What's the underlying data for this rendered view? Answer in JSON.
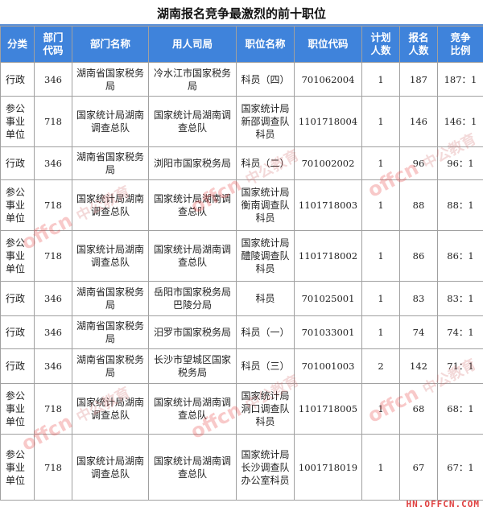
{
  "title": "湖南报名竞争最激烈的前十职位",
  "headers": [
    "分类",
    "部门代码",
    "部门名称",
    "用人司局",
    "职位名称",
    "职位代码",
    "计划人数",
    "报名人数",
    "竞争比例"
  ],
  "rows": [
    [
      "行政",
      "346",
      "湖南省国家税务局",
      "冷水江市国家税务局",
      "科员（四）",
      "701062004",
      "1",
      "187",
      "187：1"
    ],
    [
      "参公事业单位",
      "718",
      "国家统计局湖南调查总队",
      "国家统计局湖南调查总队",
      "国家统计局新邵调查队科员",
      "1101718004",
      "1",
      "146",
      "146：1"
    ],
    [
      "行政",
      "346",
      "湖南省国家税务局",
      "浏阳市国家税务局",
      "科员（二）",
      "701002002",
      "1",
      "96",
      "96：1"
    ],
    [
      "参公事业单位",
      "718",
      "国家统计局湖南调查总队",
      "国家统计局湖南调查总队",
      "国家统计局衡南调查队科员",
      "1101718003",
      "1",
      "88",
      "88：1"
    ],
    [
      "参公事业单位",
      "718",
      "国家统计局湖南调查总队",
      "国家统计局湖南调查总队",
      "国家统计局醴陵调查队科员",
      "1101718002",
      "1",
      "86",
      "86：1"
    ],
    [
      "行政",
      "346",
      "湖南省国家税务局",
      "岳阳市国家税务局巴陵分局",
      "科员",
      "701025001",
      "1",
      "83",
      "83：1"
    ],
    [
      "行政",
      "346",
      "湖南省国家税务局",
      "汨罗市国家税务局",
      "科员（一）",
      "701033001",
      "1",
      "74",
      "74：1"
    ],
    [
      "行政",
      "346",
      "湖南省国家税务局",
      "长沙市望城区国家税务局",
      "科员（三）",
      "701001003",
      "2",
      "142",
      "71：1"
    ],
    [
      "参公事业单位",
      "718",
      "国家统计局湖南调查总队",
      "国家统计局湖南调查总队",
      "国家统计局洞口调查队科员",
      "1101718005",
      "1",
      "68",
      "68：1"
    ],
    [
      "参公事业单位",
      "718",
      "国家统计局湖南调查总队",
      "国家统计局湖南调查总队",
      "国家统计局长沙调查队办公室科员",
      "1001718019",
      "1",
      "67",
      "67：1"
    ]
  ],
  "watermark": {
    "logo": "offcn",
    "brand": "中公教育",
    "site": "HN.OFFCN.COM"
  },
  "colors": {
    "header_bg": "#3f83db",
    "watermark": "#e04040"
  }
}
